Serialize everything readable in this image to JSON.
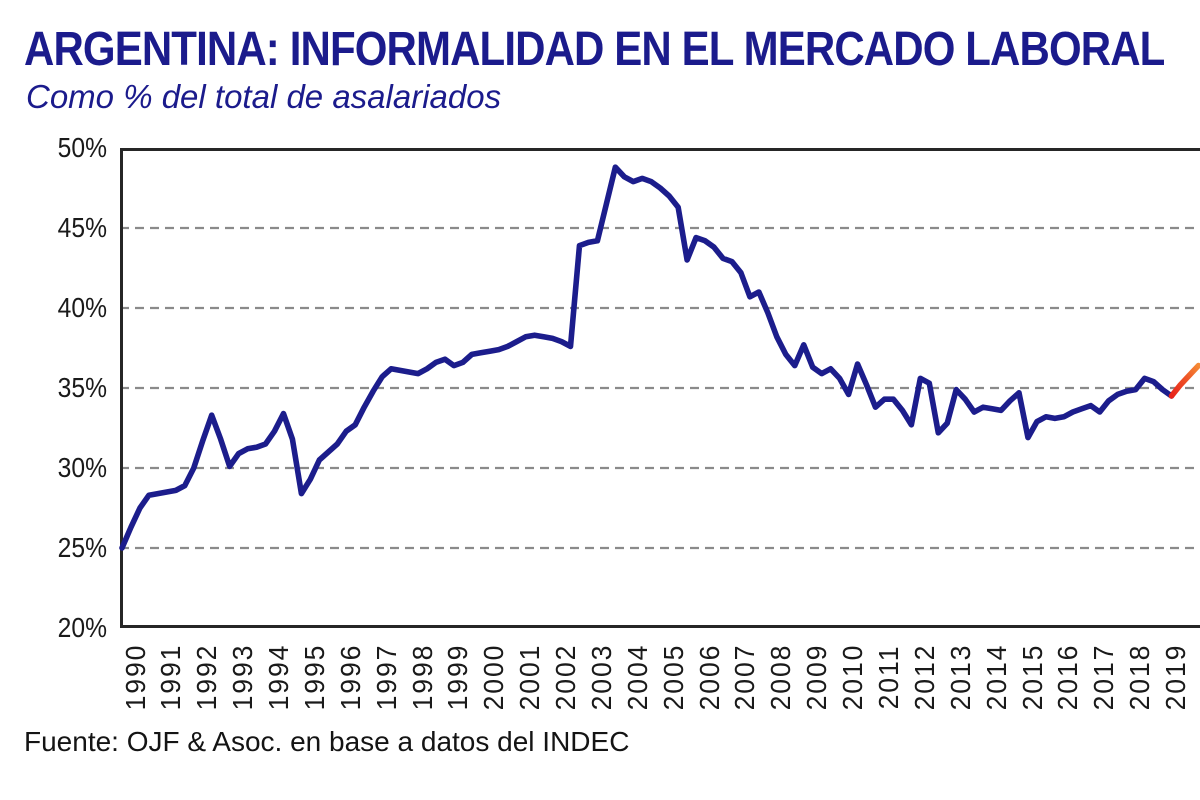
{
  "header": {
    "title": "ARGENTINA: INFORMALIDAD EN EL MERCADO LABORAL",
    "subtitle": "Como % del total de asalariados"
  },
  "footer": {
    "source": "Fuente: OJF & Asoc. en base a datos del INDEC"
  },
  "colors": {
    "title_text": "#1b1b8c",
    "historical_line": "#1c1d8c",
    "forecast_start": "#e8221a",
    "forecast_end": "#f58a35",
    "gridline": "#8a8a8a",
    "axis_border": "#262626",
    "tick_text": "#1a1a1a",
    "background": "#ffffff"
  },
  "chart_data": {
    "type": "line",
    "title": "ARGENTINA: INFORMALIDAD EN EL MERCADO LABORAL",
    "subtitle": "Como % del total de asalariados",
    "source": "Fuente: OJF & Asoc. en base a datos del INDEC",
    "frequency": "quarterly",
    "y_axis": {
      "unit": "%",
      "min": 20,
      "max": 50,
      "tick_interval": 5,
      "tick_labels": [
        "20%",
        "25%",
        "30%",
        "35%",
        "40%",
        "45%",
        "50%"
      ],
      "gridline_levels": [
        25,
        30,
        35,
        40,
        45
      ],
      "gridline_style": "dashed"
    },
    "x_axis": {
      "tick_labels": [
        "1990",
        "1991",
        "1992",
        "1993",
        "1994",
        "1995",
        "1996",
        "1997",
        "1998",
        "1999",
        "2000",
        "2001",
        "2002",
        "2003",
        "2004",
        "2005",
        "2006",
        "2007",
        "2008",
        "2009",
        "2010",
        "2011",
        "2012",
        "2013",
        "2014",
        "2015",
        "2016",
        "2017",
        "2018",
        "2019"
      ],
      "label_rotation_deg": -90
    },
    "series": [
      {
        "name": "informalidad-historica",
        "color": "#1c1d8c",
        "start": "1990Q1",
        "end": "2019Q2",
        "values": [
          25.0,
          26.3,
          27.5,
          28.3,
          28.4,
          28.5,
          28.6,
          28.9,
          30.0,
          31.7,
          33.3,
          31.8,
          30.1,
          30.9,
          31.2,
          31.3,
          31.5,
          32.3,
          33.4,
          31.8,
          28.4,
          29.3,
          30.5,
          31.0,
          31.5,
          32.3,
          32.7,
          33.8,
          34.8,
          35.7,
          36.2,
          36.1,
          36.0,
          35.9,
          36.2,
          36.6,
          36.8,
          36.4,
          36.6,
          37.1,
          37.2,
          37.3,
          37.4,
          37.6,
          37.9,
          38.2,
          38.3,
          38.2,
          38.1,
          37.9,
          37.6,
          43.9,
          44.1,
          44.2,
          46.5,
          48.8,
          48.2,
          47.9,
          48.1,
          47.9,
          47.5,
          47.0,
          46.3,
          43.0,
          44.4,
          44.2,
          43.8,
          43.1,
          42.9,
          42.2,
          40.7,
          41.0,
          39.7,
          38.2,
          37.1,
          36.4,
          37.7,
          36.3,
          35.9,
          36.2,
          35.6,
          34.6,
          36.5,
          35.2,
          33.8,
          34.3,
          34.3,
          33.6,
          32.7,
          35.6,
          35.3,
          32.2,
          32.8,
          34.9,
          34.3,
          33.5,
          33.8,
          33.7,
          33.6,
          34.2,
          34.7,
          31.9,
          32.9,
          33.2,
          33.1,
          33.2,
          33.5,
          33.7,
          33.9,
          33.5,
          34.2,
          34.6,
          34.8,
          34.9,
          35.6,
          35.4,
          34.9,
          34.5
        ]
      },
      {
        "name": "proyeccion",
        "color_start": "#e8221a",
        "color_end": "#f58a35",
        "start": "2019Q2",
        "end": "2020Q1",
        "values": [
          34.5,
          35.2,
          35.8,
          36.4
        ]
      }
    ]
  }
}
